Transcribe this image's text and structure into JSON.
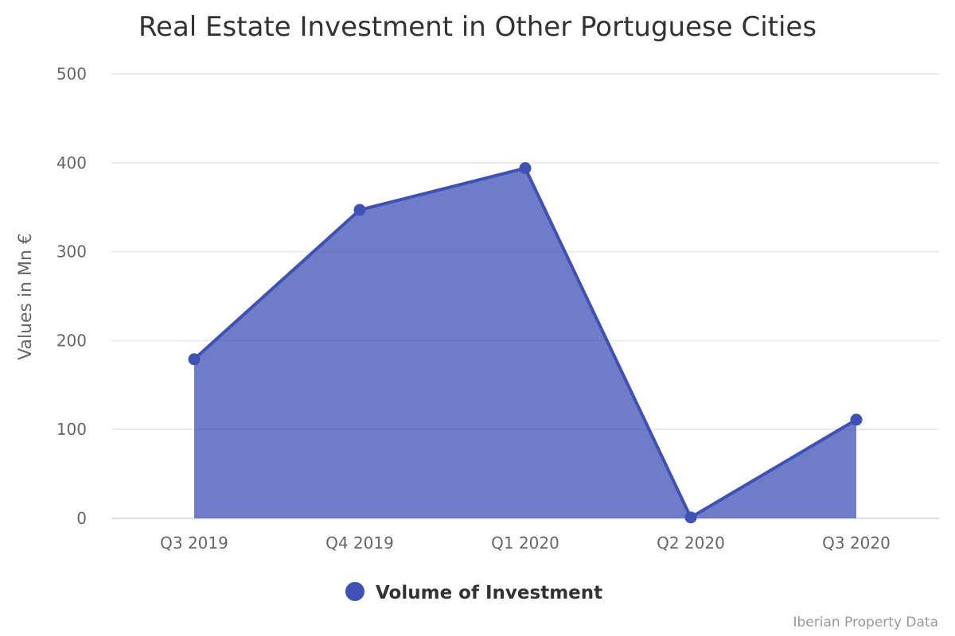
{
  "chart_data": {
    "type": "area",
    "title": "Real Estate Investment in Other Portuguese Cities",
    "xlabel": "",
    "ylabel": "Values in Mn €",
    "categories": [
      "Q3 2019",
      "Q4 2019",
      "Q1 2020",
      "Q2 2020",
      "Q3 2020"
    ],
    "series": [
      {
        "name": "Volume of Investment",
        "values": [
          179,
          347,
          394,
          1,
          111
        ],
        "color": "#3f51b5"
      }
    ],
    "ylim": [
      0,
      500
    ],
    "yticks": [
      0,
      100,
      200,
      300,
      400,
      500
    ],
    "grid": true,
    "legend_position": "bottom"
  },
  "credit": "Iberian Property Data",
  "colors": {
    "series": "#3f51b5",
    "fill": "#6b7bc6",
    "grid": "#e6e6e6",
    "axis_text": "#666666",
    "title": "#333333"
  }
}
